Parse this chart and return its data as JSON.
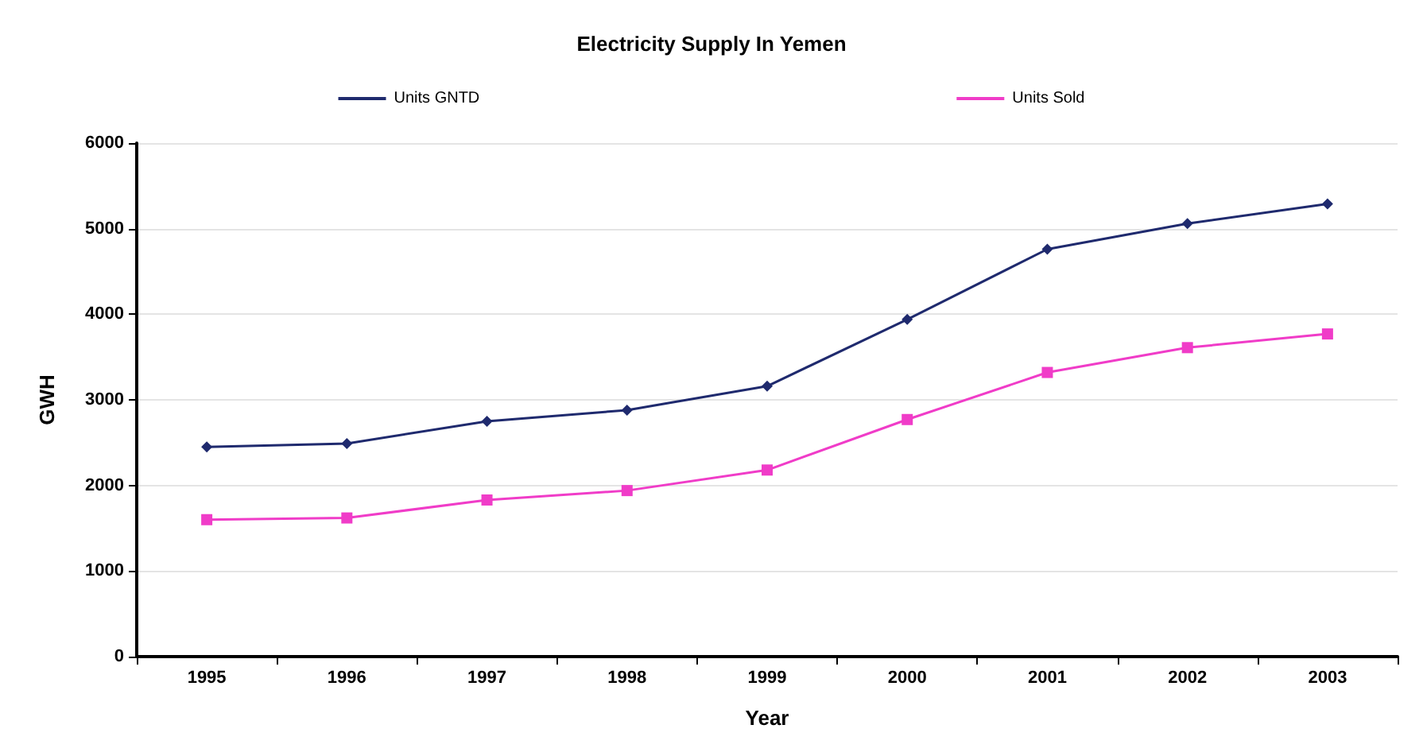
{
  "chart_data": {
    "type": "line",
    "title": "Electricity Supply In Yemen",
    "xlabel": "Year",
    "ylabel": "GWH",
    "categories": [
      "1995",
      "1996",
      "1997",
      "1998",
      "1999",
      "2000",
      "2001",
      "2002",
      "2003"
    ],
    "series": [
      {
        "name": "Units GNTD",
        "color": "#1f2a6e",
        "marker": "diamond",
        "values": [
          2450,
          2490,
          2750,
          2880,
          3160,
          3940,
          4760,
          5060,
          5290
        ]
      },
      {
        "name": "Units Sold",
        "color": "#f03cc8",
        "marker": "square",
        "values": [
          1600,
          1620,
          1830,
          1940,
          2180,
          2770,
          3320,
          3610,
          3770
        ]
      }
    ],
    "ylim": [
      0,
      6000
    ],
    "yticks": [
      0,
      1000,
      2000,
      3000,
      4000,
      5000,
      6000
    ],
    "grid": "y",
    "legend": "top"
  }
}
